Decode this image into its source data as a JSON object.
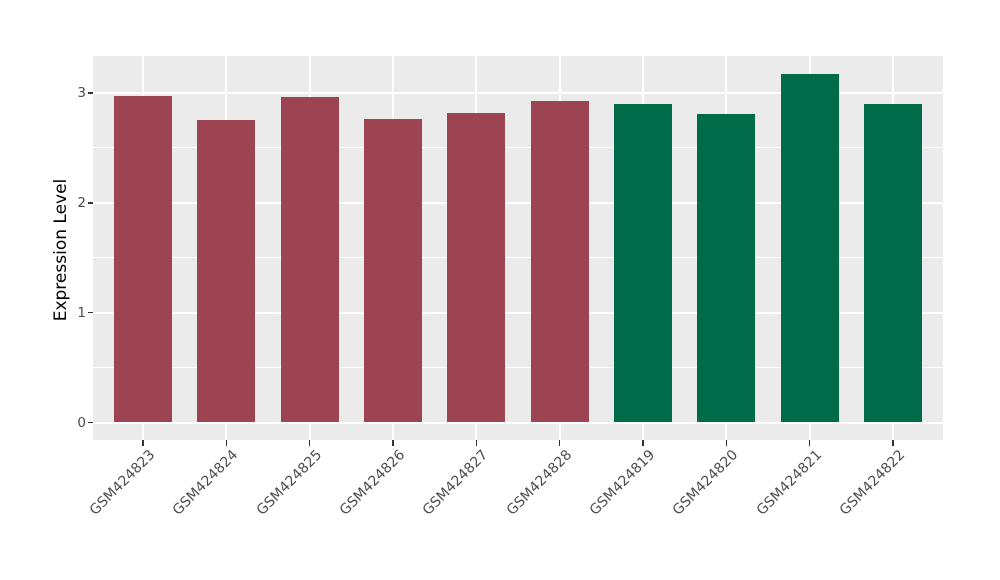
{
  "chart_data": {
    "type": "bar",
    "title": "",
    "ylabel": "Expression Level",
    "xlabel": "",
    "categories": [
      "GSM424823",
      "GSM424824",
      "GSM424825",
      "GSM424826",
      "GSM424827",
      "GSM424828",
      "GSM424819",
      "GSM424820",
      "GSM424821",
      "GSM424822"
    ],
    "values": [
      2.97,
      2.75,
      2.96,
      2.76,
      2.82,
      2.93,
      2.9,
      2.81,
      3.17,
      2.9
    ],
    "bar_colors": [
      "#9C4452",
      "#9C4452",
      "#9C4452",
      "#9C4452",
      "#9C4452",
      "#9C4452",
      "#006B48",
      "#006B48",
      "#006B48",
      "#006B48"
    ],
    "group_colors": {
      "group1": "#9C4452",
      "group2": "#006B48"
    },
    "yticks": [
      0,
      1,
      2,
      3
    ],
    "y_minor_ticks": [
      0.5,
      1.5,
      2.5
    ],
    "ylim": [
      -0.17,
      3.33
    ],
    "grid": true,
    "legend": false,
    "bar_orientation": "vertical",
    "x_label_rotation_deg": 45,
    "colors": {
      "panel_background": "#EBEBEB",
      "gridline": "#FFFFFF",
      "axis_text": "#4D4D4D",
      "axis_title": "#000000",
      "tick_mark": "#333333",
      "figure_background": "#FFFFFF"
    }
  }
}
